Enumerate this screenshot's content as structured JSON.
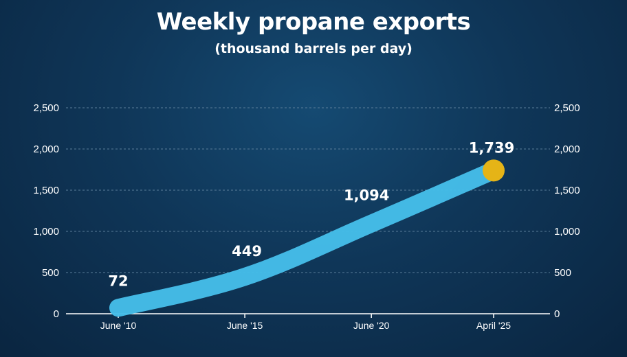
{
  "chart_data": {
    "type": "line",
    "title": "Weekly propane exports",
    "subtitle": "(thousand barrels per day)",
    "xlabel": "",
    "ylabel": "",
    "categories": [
      "June '10",
      "June '15",
      "June '20",
      "April '25"
    ],
    "x_positions": [
      2010.5,
      2015.5,
      2020.5,
      2025.33
    ],
    "x_range": [
      2010.5,
      2025.33
    ],
    "series": [
      {
        "values": [
          72,
          449,
          1094,
          1739
        ],
        "color": "#45bde8"
      }
    ],
    "data_labels": [
      "72",
      "449",
      "1,094",
      "1,739"
    ],
    "ylim": [
      0,
      2500
    ],
    "y_ticks": [
      0,
      500,
      1000,
      1500,
      2000,
      2500
    ],
    "y_tick_labels": [
      "0",
      "500",
      "1,000",
      "1,500",
      "2,000",
      "2,500"
    ],
    "grid": true,
    "dual_y_axis": true,
    "endpoint_marker_color": "#e5b417",
    "grid_color": "#5a7d99"
  }
}
